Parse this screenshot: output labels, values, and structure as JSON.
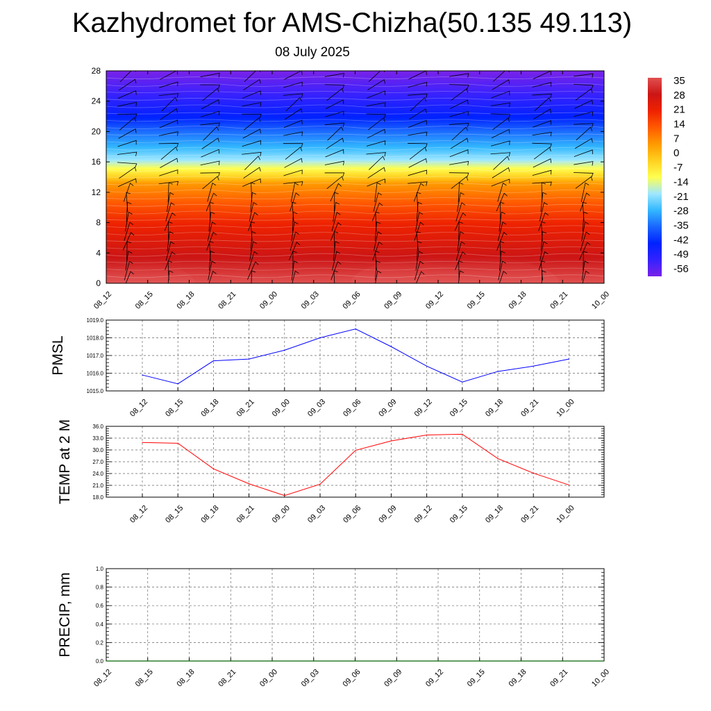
{
  "title": "Kazhydromet for AMS-Chizha(50.135 49.113)",
  "subtitle": "08 July 2025",
  "chart_data": [
    {
      "type": "heatmap",
      "name": "cross-section",
      "x_categories": [
        "08_12",
        "08_15",
        "08_18",
        "08_21",
        "09_00",
        "09_03",
        "09_06",
        "09_09",
        "09_12",
        "09_15",
        "09_18",
        "09_21",
        "10_00"
      ],
      "y_ticks": [
        0,
        4,
        8,
        12,
        16,
        20,
        24,
        28
      ],
      "ylim": [
        0,
        28
      ],
      "colorbar_labels": [
        "35",
        "28",
        "21",
        "14",
        "7",
        "0",
        "-7",
        "-14",
        "-21",
        "-28",
        "-35",
        "-42",
        "-49",
        "-56"
      ],
      "colorbar_range": [
        -60,
        38
      ],
      "colors": [
        "#7a22e8",
        "#3322ff",
        "#0022ff",
        "#1a66ff",
        "#33b8ff",
        "#a0e8ff",
        "#ffff50",
        "#ffd020",
        "#ff9a00",
        "#ff5a00",
        "#ee2200",
        "#cc1515",
        "#e05050"
      ],
      "wind_barbs": true,
      "grid": false
    },
    {
      "type": "line",
      "name": "pressure",
      "ylabel": "PMSL",
      "x_categories": [
        "08_12",
        "08_15",
        "08_18",
        "08_21",
        "09_00",
        "09_03",
        "09_06",
        "09_09",
        "09_12",
        "09_15",
        "09_18",
        "09_21",
        "10_00"
      ],
      "y_ticks": [
        "1015.0",
        "1016.0",
        "1017.0",
        "1018.0",
        "1019.0"
      ],
      "ylim": [
        1015.0,
        1019.0
      ],
      "values": [
        1015.9,
        1015.4,
        1016.7,
        1016.8,
        1017.3,
        1018.0,
        1018.5,
        1017.5,
        1016.4,
        1015.5,
        1016.1,
        1016.4,
        1016.8
      ],
      "color": "#0000ff",
      "grid": true
    },
    {
      "type": "line",
      "name": "temperature",
      "ylabel": "TEMP at 2 M",
      "x_categories": [
        "08_12",
        "08_15",
        "08_18",
        "08_21",
        "09_00",
        "09_03",
        "09_06",
        "09_09",
        "09_12",
        "09_15",
        "09_18",
        "09_21",
        "10_00"
      ],
      "y_ticks": [
        "18.0",
        "21.0",
        "24.0",
        "27.0",
        "30.0",
        "33.0",
        "36.0"
      ],
      "ylim": [
        18.0,
        36.0
      ],
      "values": [
        31.9,
        31.7,
        25.2,
        21.4,
        18.4,
        21.3,
        29.9,
        32.3,
        33.8,
        34.0,
        27.8,
        24.1,
        21.1
      ],
      "color": "#ff0000",
      "grid": true
    },
    {
      "type": "bar",
      "name": "precipitation",
      "ylabel": "PRECIP, mm",
      "x_categories": [
        "08_12",
        "08_15",
        "08_18",
        "08_21",
        "09_00",
        "09_03",
        "09_06",
        "09_09",
        "09_12",
        "09_15",
        "09_18",
        "09_21",
        "10_00"
      ],
      "y_ticks": [
        "0.0",
        "0.2",
        "0.4",
        "0.6",
        "0.8",
        "1.0"
      ],
      "ylim": [
        0.0,
        1.0
      ],
      "values": [
        0,
        0,
        0,
        0,
        0,
        0,
        0,
        0,
        0,
        0,
        0,
        0,
        0
      ],
      "color": "#006400",
      "grid": true
    }
  ]
}
